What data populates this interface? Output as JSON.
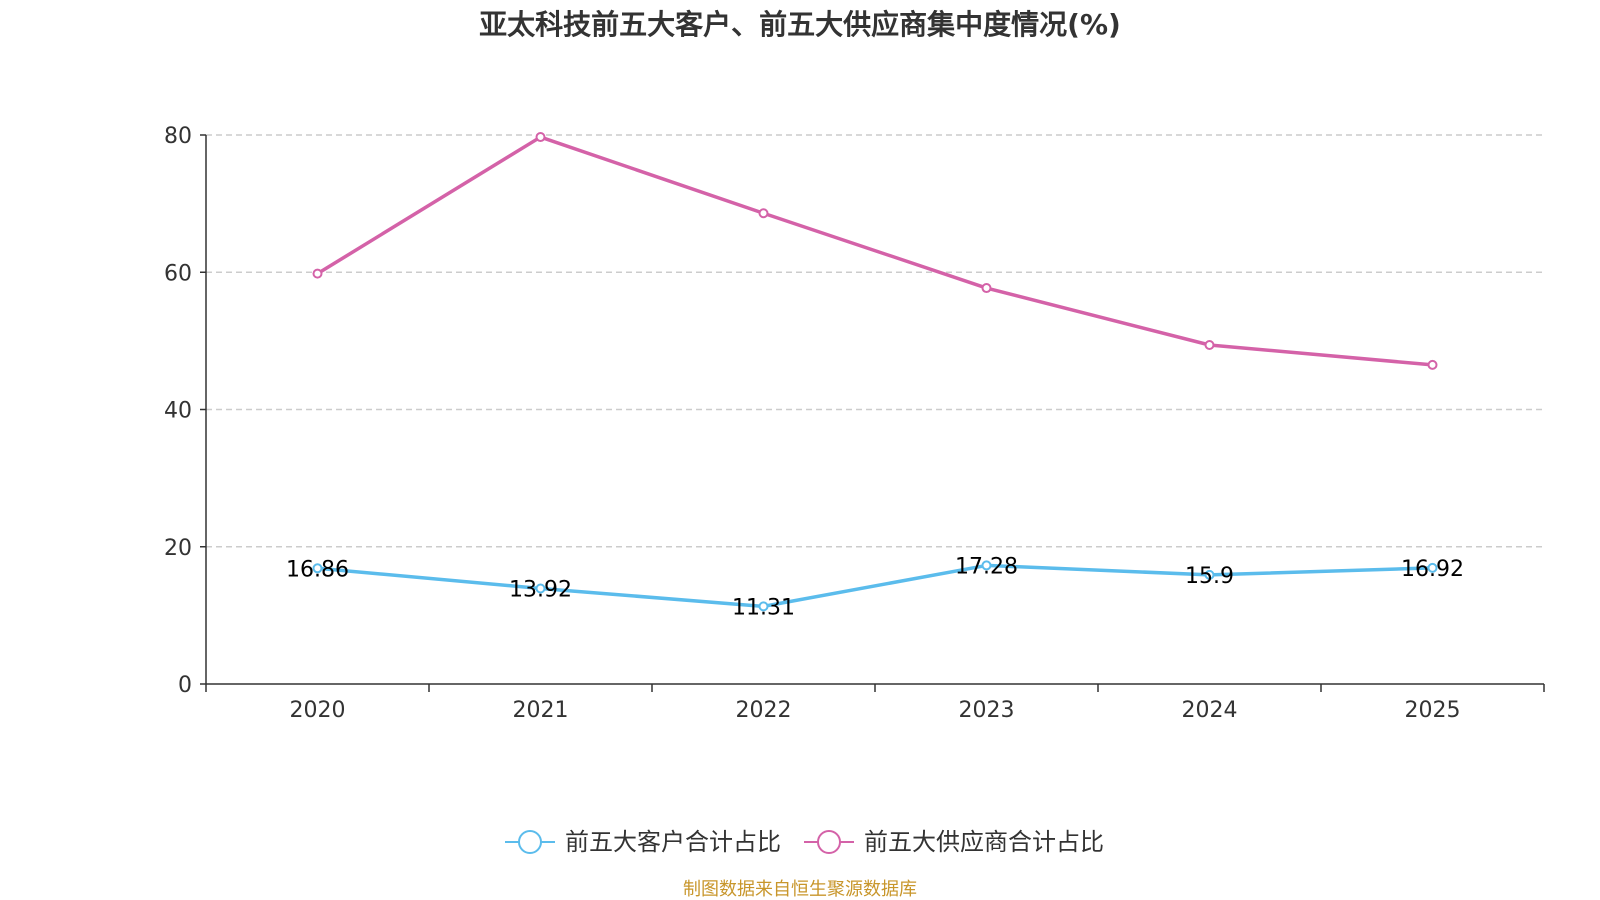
{
  "chart_data": {
    "type": "line",
    "title": "亚太科技前五大客户、前五大供应商集中度情况(%)",
    "categories": [
      "2020",
      "2021",
      "2022",
      "2023",
      "2024",
      "2025"
    ],
    "ylim": [
      0,
      80
    ],
    "yticks": [
      0,
      20,
      40,
      60,
      80
    ],
    "grid": true,
    "legend_position": "bottom-center",
    "series": [
      {
        "name": "前五大客户合计占比",
        "color": "#5bbcec",
        "values": [
          16.86,
          13.92,
          11.31,
          17.28,
          15.9,
          16.92
        ],
        "labels": [
          "16.86",
          "13.92",
          "11.31",
          "17.28",
          "15.9",
          "16.92"
        ],
        "show_labels": true
      },
      {
        "name": "前五大供应商合计占比",
        "color": "#d462a8",
        "values": [
          59.8,
          79.7,
          68.6,
          57.7,
          49.4,
          46.5
        ],
        "show_labels": false
      }
    ],
    "source": "制图数据来自恒生聚源数据库"
  }
}
